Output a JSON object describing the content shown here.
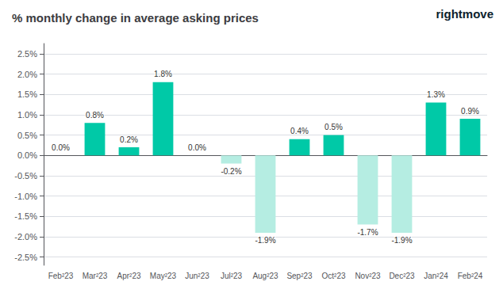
{
  "chart_data": {
    "type": "bar",
    "title": "% monthly change in average asking prices",
    "annotations": [
      "rightmove"
    ],
    "categories": [
      "Feb²23",
      "Mar²23",
      "Apr²23",
      "May²23",
      "Jun²23",
      "Jul²23",
      "Aug²23",
      "Sep²23",
      "Oct²23",
      "Nov²23",
      "Dec²23",
      "Jan²24",
      "Feb²24"
    ],
    "values": [
      0.0,
      0.8,
      0.2,
      1.8,
      0.0,
      -0.2,
      -1.9,
      0.4,
      0.5,
      -1.7,
      -1.9,
      1.3,
      0.9
    ],
    "value_labels": [
      "0.0%",
      "0.8%",
      "0.2%",
      "1.8%",
      "0.0%",
      "-0.2%",
      "-1.9%",
      "0.4%",
      "0.5%",
      "-1.7%",
      "-1.9%",
      "1.3%",
      "0.9%"
    ],
    "colors": [
      "#b5ede2",
      "#00c9a7",
      "#00c9a7",
      "#00c9a7",
      "#b5ede2",
      "#b5ede2",
      "#b5ede2",
      "#00c9a7",
      "#00c9a7",
      "#b5ede2",
      "#b5ede2",
      "#00c9a7",
      "#00c9a7"
    ],
    "data_labels": true,
    "ylim": [
      -2.7,
      2.75
    ],
    "yticks": [
      {
        "value": -2.5,
        "label": "-2.5%"
      },
      {
        "value": -2.0,
        "label": "-2.0%"
      },
      {
        "value": -1.5,
        "label": "-1.5%"
      },
      {
        "value": -1.0,
        "label": "-1.0%"
      },
      {
        "value": -0.5,
        "label": "-0.5%"
      },
      {
        "value": 0.0,
        "label": "0.0%"
      },
      {
        "value": 0.5,
        "label": "0.5%"
      },
      {
        "value": 1.0,
        "label": "1.0%"
      },
      {
        "value": 1.5,
        "label": "1.5%"
      },
      {
        "value": 2.0,
        "label": "2.0%"
      },
      {
        "value": 2.5,
        "label": "2.5%"
      }
    ],
    "grid": true
  }
}
